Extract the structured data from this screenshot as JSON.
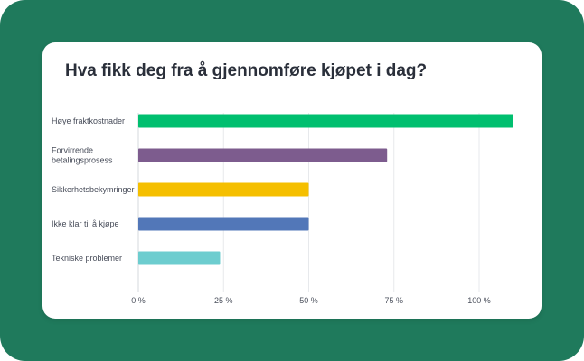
{
  "title": "Hva fikk deg fra å gjennomføre kjøpet i dag?",
  "colors": {
    "background": "#1f7a5c",
    "card": "#ffffff"
  },
  "chart_data": {
    "type": "bar",
    "orientation": "horizontal",
    "title": "Hva fikk deg fra å gjennomføre kjøpet i dag?",
    "xlabel": "",
    "ylabel": "",
    "categories": [
      [
        "Høye fraktkostnader"
      ],
      [
        "Forvirrende",
        "betalingsprosess"
      ],
      [
        "Sikkerhetsbekymringer"
      ],
      [
        "Ikke klar til å kjøpe"
      ],
      [
        "Tekniske problemer"
      ]
    ],
    "values": [
      110,
      73,
      50,
      50,
      24
    ],
    "value_unit": "%",
    "bar_colors": [
      "#00bf6f",
      "#7d5c8e",
      "#f5bf00",
      "#5277b8",
      "#6dcdcf"
    ],
    "xlim": [
      0,
      100
    ],
    "xticks": [
      0,
      25,
      50,
      75,
      100
    ],
    "xtick_labels": [
      "0 %",
      "25 %",
      "50 %",
      "75 %",
      "100 %"
    ],
    "grid": true,
    "legend": "none"
  }
}
